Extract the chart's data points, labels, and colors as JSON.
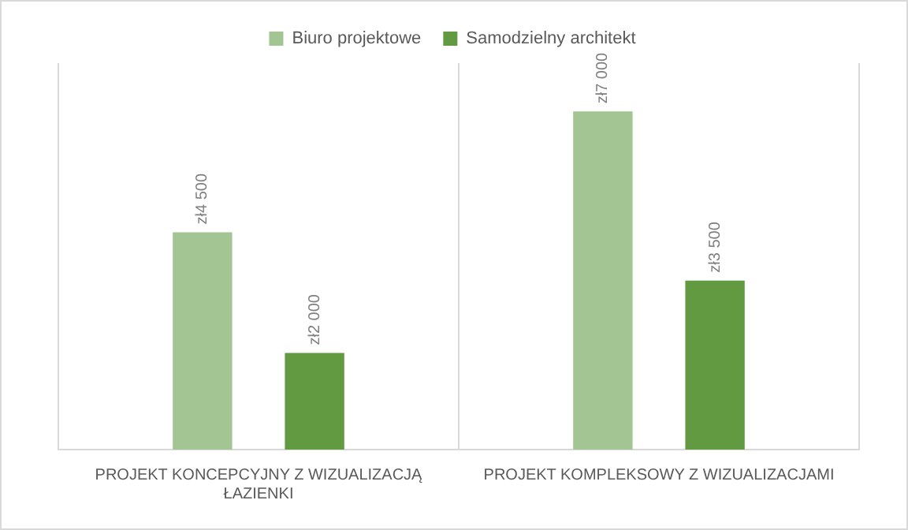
{
  "chart_data": {
    "type": "bar",
    "categories": [
      "PROJEKT KONCEPCYJNY Z WIZUALIZACJĄ ŁAZIENKI",
      "PROJEKT KOMPLEKSOWY Z WIZUALIZACJAMI"
    ],
    "series": [
      {
        "name": "Biuro projektowe",
        "color": "#a3c594",
        "values": [
          4500,
          7000
        ],
        "value_labels": [
          "zł4 500",
          "zł7 000"
        ]
      },
      {
        "name": "Samodzielny architekt",
        "color": "#619a41",
        "values": [
          2000,
          3500
        ],
        "value_labels": [
          "zł2 000",
          "zł3 500"
        ]
      }
    ],
    "legend": "top",
    "grid": "x"
  }
}
